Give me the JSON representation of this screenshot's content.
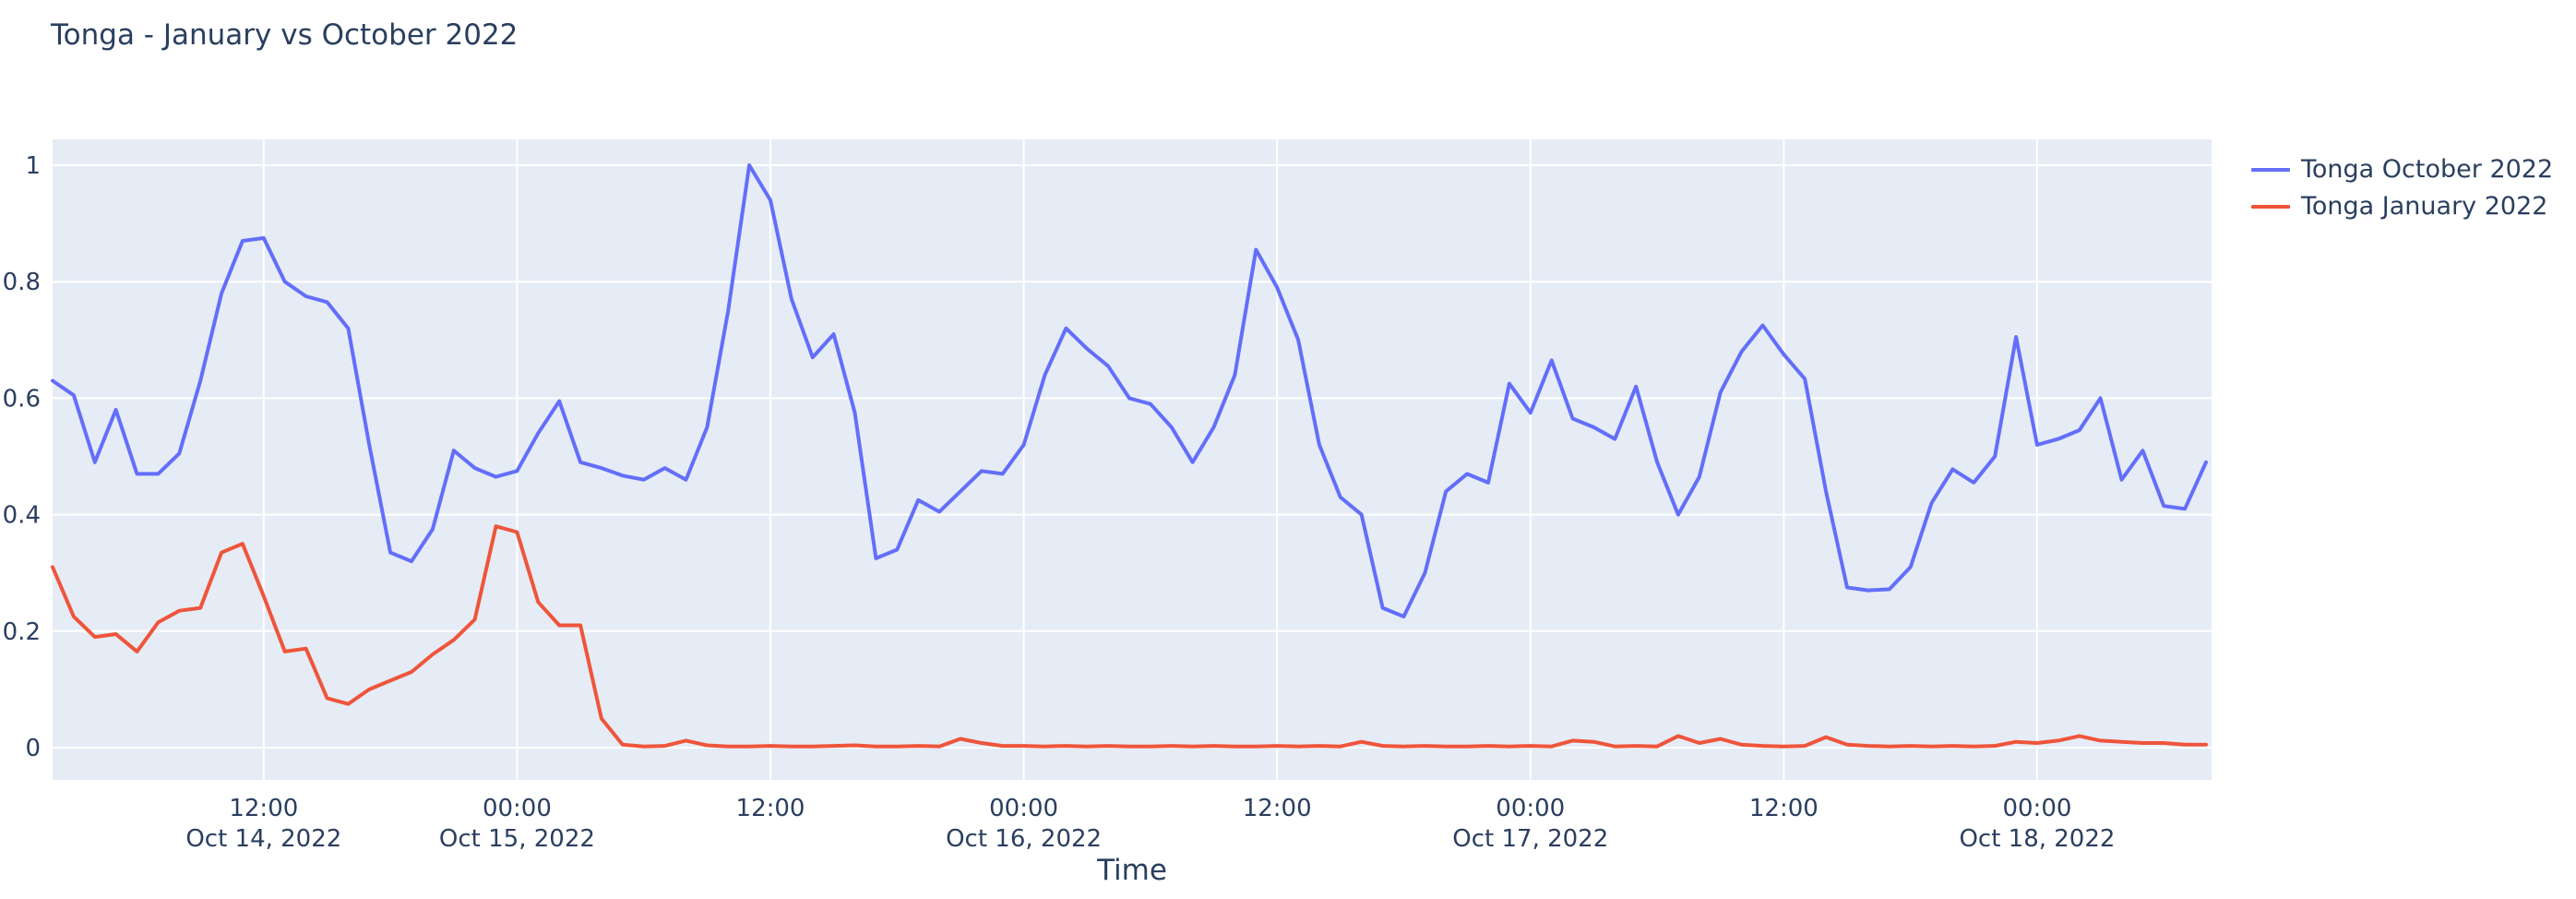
{
  "page": {
    "background_color": "#ffffff",
    "title_color": "#2a3f5f",
    "tick_label_color": "#2a3f5f",
    "plot_background_color": "#E5ECF6",
    "gridline_color": "#ffffff"
  },
  "chart_data": {
    "type": "line",
    "title": "Tonga - January vs October 2022",
    "xlabel": "Time",
    "ylabel": "",
    "x_start": "2022-10-14 02:00",
    "x_step_hours": 1,
    "n_points": 103,
    "x_end": "2022-10-18 08:00",
    "ylim": [
      -0.055,
      1.045
    ],
    "grid": true,
    "legend_position": "outside-top-right",
    "y_ticks": [
      {
        "value": 0,
        "label": "0"
      },
      {
        "value": 0.2,
        "label": "0.2"
      },
      {
        "value": 0.4,
        "label": "0.4"
      },
      {
        "value": 0.6,
        "label": "0.6"
      },
      {
        "value": 0.8,
        "label": "0.8"
      },
      {
        "value": 1,
        "label": "1"
      }
    ],
    "x_ticks": [
      {
        "hour_offset": 10,
        "time": "12:00",
        "date": "Oct 14, 2022"
      },
      {
        "hour_offset": 22,
        "time": "00:00",
        "date": "Oct 15, 2022"
      },
      {
        "hour_offset": 34,
        "time": "12:00",
        "date": ""
      },
      {
        "hour_offset": 46,
        "time": "00:00",
        "date": "Oct 16, 2022"
      },
      {
        "hour_offset": 58,
        "time": "12:00",
        "date": ""
      },
      {
        "hour_offset": 70,
        "time": "00:00",
        "date": "Oct 17, 2022"
      },
      {
        "hour_offset": 82,
        "time": "12:00",
        "date": ""
      },
      {
        "hour_offset": 94,
        "time": "00:00",
        "date": "Oct 18, 2022"
      }
    ],
    "series": [
      {
        "name": "Tonga October 2022",
        "color": "#636EFA",
        "values": [
          0.63,
          0.605,
          0.49,
          0.58,
          0.47,
          0.47,
          0.505,
          0.63,
          0.78,
          0.87,
          0.875,
          0.8,
          0.775,
          0.765,
          0.72,
          0.52,
          0.335,
          0.32,
          0.375,
          0.51,
          0.48,
          0.465,
          0.475,
          0.54,
          0.595,
          0.49,
          0.48,
          0.467,
          0.46,
          0.48,
          0.46,
          0.55,
          0.75,
          1.0,
          0.94,
          0.77,
          0.67,
          0.71,
          0.575,
          0.325,
          0.34,
          0.425,
          0.405,
          0.44,
          0.475,
          0.47,
          0.52,
          0.64,
          0.72,
          0.685,
          0.655,
          0.6,
          0.59,
          0.55,
          0.49,
          0.55,
          0.64,
          0.855,
          0.79,
          0.7,
          0.52,
          0.43,
          0.4,
          0.24,
          0.225,
          0.3,
          0.44,
          0.47,
          0.455,
          0.625,
          0.575,
          0.665,
          0.565,
          0.55,
          0.53,
          0.62,
          0.49,
          0.4,
          0.465,
          0.61,
          0.68,
          0.725,
          0.675,
          0.633,
          0.44,
          0.275,
          0.27,
          0.272,
          0.31,
          0.42,
          0.478,
          0.455,
          0.5,
          0.705,
          0.52,
          0.53,
          0.545,
          0.6,
          0.46,
          0.51,
          0.415,
          0.41,
          0.49
        ]
      },
      {
        "name": "Tonga January 2022",
        "color": "#EF553B",
        "values": [
          0.31,
          0.225,
          0.19,
          0.195,
          0.165,
          0.215,
          0.235,
          0.24,
          0.335,
          0.35,
          0.26,
          0.165,
          0.17,
          0.085,
          0.075,
          0.1,
          0.115,
          0.13,
          0.16,
          0.185,
          0.22,
          0.38,
          0.37,
          0.25,
          0.21,
          0.21,
          0.05,
          0.005,
          0.002,
          0.003,
          0.012,
          0.004,
          0.002,
          0.002,
          0.003,
          0.002,
          0.002,
          0.003,
          0.004,
          0.002,
          0.002,
          0.003,
          0.002,
          0.015,
          0.008,
          0.003,
          0.003,
          0.002,
          0.003,
          0.002,
          0.003,
          0.002,
          0.002,
          0.003,
          0.002,
          0.003,
          0.002,
          0.002,
          0.003,
          0.002,
          0.003,
          0.002,
          0.01,
          0.003,
          0.002,
          0.003,
          0.002,
          0.002,
          0.003,
          0.002,
          0.003,
          0.002,
          0.012,
          0.01,
          0.002,
          0.003,
          0.002,
          0.02,
          0.008,
          0.015,
          0.005,
          0.003,
          0.002,
          0.003,
          0.018,
          0.005,
          0.003,
          0.002,
          0.003,
          0.002,
          0.003,
          0.002,
          0.003,
          0.01,
          0.008,
          0.012,
          0.02,
          0.012,
          0.01,
          0.008,
          0.008,
          0.005,
          0.005
        ]
      }
    ]
  }
}
